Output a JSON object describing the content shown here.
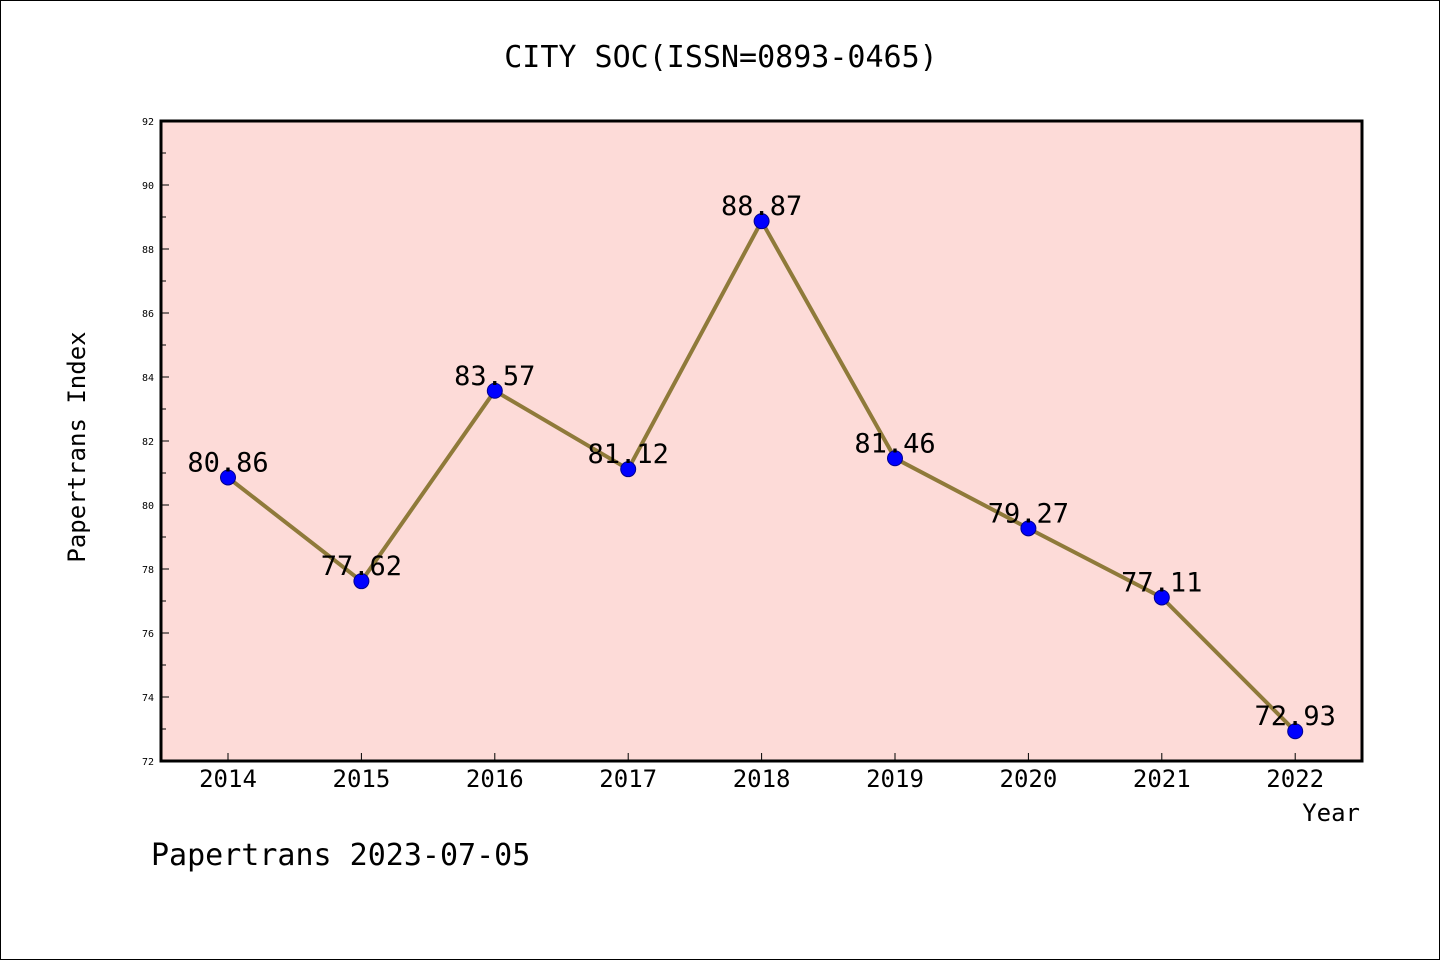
{
  "chart_data": {
    "type": "line",
    "title": "CITY SOC(ISSN=0893-0465)",
    "xlabel": "Year",
    "ylabel": "Papertrans Index",
    "categories": [
      "2014",
      "2015",
      "2016",
      "2017",
      "2018",
      "2019",
      "2020",
      "2021",
      "2022"
    ],
    "series": [
      {
        "values": [
          80.86,
          77.62,
          83.57,
          81.12,
          88.87,
          81.46,
          79.27,
          77.11,
          72.93
        ]
      }
    ],
    "data_labels": [
      "80.86",
      "77.62",
      "83.57",
      "81.12",
      "88.87",
      "81.46",
      "79.27",
      "77.11",
      "72.93"
    ],
    "ylim": [
      72,
      92
    ],
    "yticks": [
      "72",
      "74",
      "76",
      "78",
      "80",
      "82",
      "84",
      "86",
      "88",
      "90",
      "92"
    ],
    "grid": false,
    "footer": "Papertrans 2023-07-05",
    "colors": {
      "plot_background": "#fddbd8",
      "line": "#8f7a3a",
      "marker": "#0000ff"
    }
  }
}
